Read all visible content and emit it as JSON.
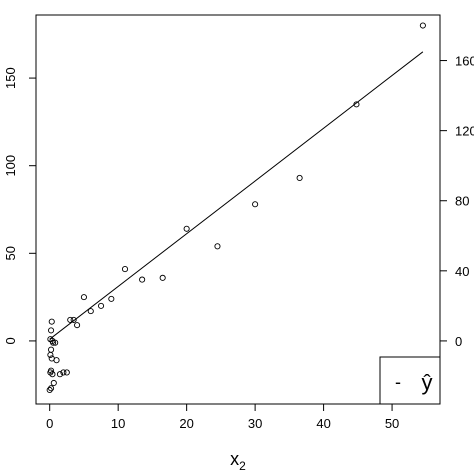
{
  "chart_data": {
    "type": "scatter",
    "title": "",
    "xlabel": "x",
    "xlabel_sub": "2",
    "ylabel": "",
    "xlim": [
      -2,
      57
    ],
    "ylim": [
      -36,
      186
    ],
    "right_ylim": [
      -36,
      186
    ],
    "x_ticks": [
      0,
      10,
      20,
      30,
      40,
      50
    ],
    "x_tick_labels": [
      "0",
      "10",
      "20",
      "30",
      "40",
      "50"
    ],
    "y_ticks": [
      0,
      50,
      100,
      150
    ],
    "y_tick_labels": [
      "0",
      "50",
      "100",
      "150"
    ],
    "right_ticks": [
      0,
      40,
      80,
      120,
      160
    ],
    "right_tick_labels": [
      "0",
      "40",
      "80",
      "120",
      "160"
    ],
    "grid": false,
    "legend": {
      "position": "bottom-right",
      "symbol": "-",
      "label": "ŷ"
    },
    "fit_line": {
      "x": [
        0,
        54.5
      ],
      "y": [
        1,
        165
      ]
    },
    "series": [
      {
        "points": [
          {
            "x": 54.5,
            "y": 180
          },
          {
            "x": 44.8,
            "y": 135
          },
          {
            "x": 36.5,
            "y": 93
          },
          {
            "x": 30.0,
            "y": 78
          },
          {
            "x": 20.0,
            "y": 64
          },
          {
            "x": 24.5,
            "y": 54
          },
          {
            "x": 11.0,
            "y": 41
          },
          {
            "x": 13.5,
            "y": 35
          },
          {
            "x": 16.5,
            "y": 36
          },
          {
            "x": 5.0,
            "y": 25
          },
          {
            "x": 9.0,
            "y": 24
          },
          {
            "x": 7.5,
            "y": 20
          },
          {
            "x": 6.0,
            "y": 17
          },
          {
            "x": 3.0,
            "y": 12
          },
          {
            "x": 3.5,
            "y": 12
          },
          {
            "x": 4.0,
            "y": 9
          },
          {
            "x": 0.3,
            "y": 11
          },
          {
            "x": 0.2,
            "y": 6
          },
          {
            "x": 0.1,
            "y": 1
          },
          {
            "x": 0.5,
            "y": -1
          },
          {
            "x": 0.8,
            "y": -1
          },
          {
            "x": 0.4,
            "y": 0
          },
          {
            "x": 0.2,
            "y": -5
          },
          {
            "x": 0.1,
            "y": -8
          },
          {
            "x": 0.3,
            "y": -10
          },
          {
            "x": 1.0,
            "y": -11
          },
          {
            "x": 0.2,
            "y": -17
          },
          {
            "x": 0.1,
            "y": -18
          },
          {
            "x": 0.4,
            "y": -19
          },
          {
            "x": 2.0,
            "y": -18
          },
          {
            "x": 2.5,
            "y": -18
          },
          {
            "x": 1.5,
            "y": -19
          },
          {
            "x": 0.6,
            "y": -24
          },
          {
            "x": 0.2,
            "y": -27
          },
          {
            "x": 0.0,
            "y": -28
          }
        ]
      }
    ]
  }
}
